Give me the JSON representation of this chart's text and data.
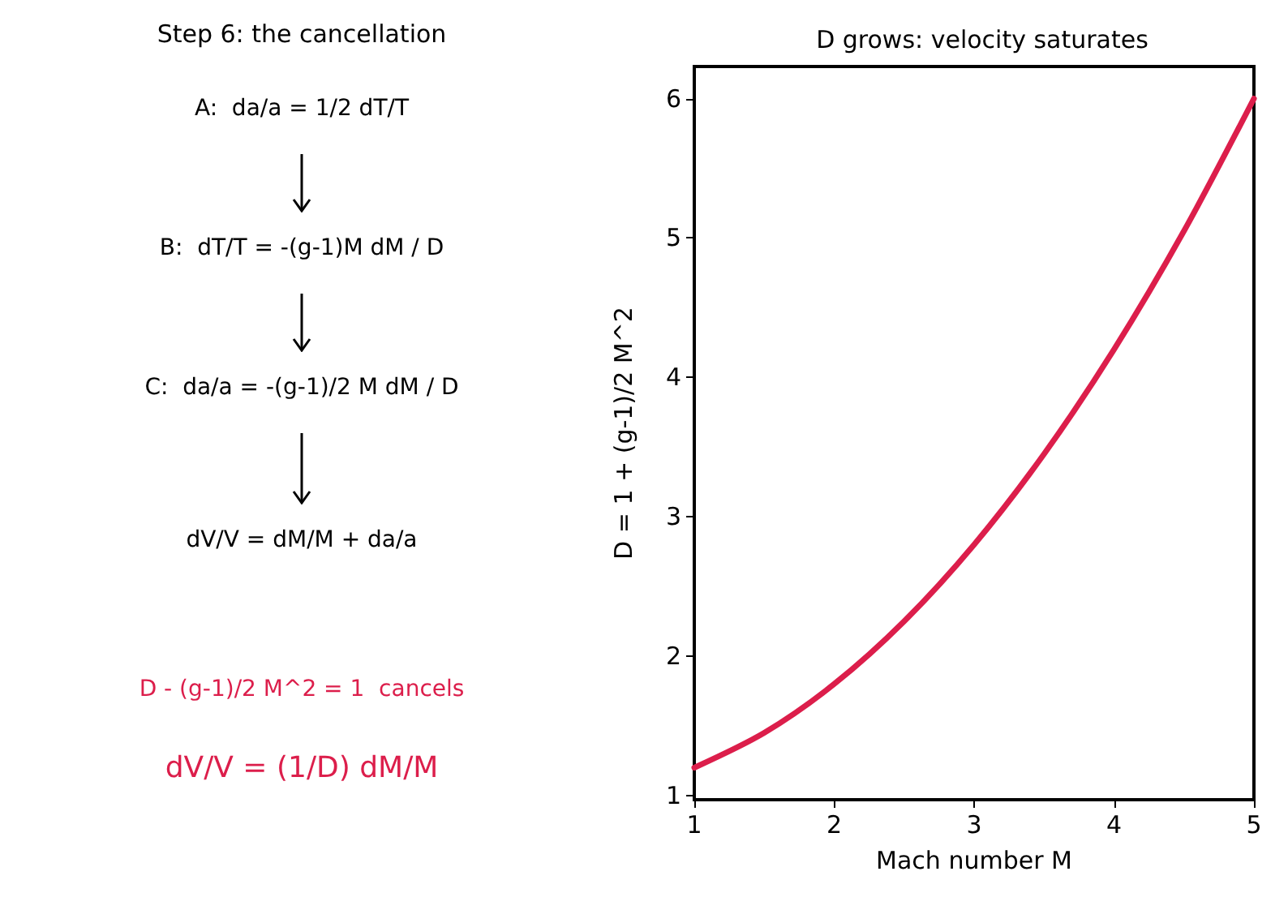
{
  "chart_data": [
    {
      "type": "other",
      "title": "Step 6: the cancellation",
      "color": "#dc1e4b",
      "annotations": [
        "A:  da/a = 1/2 dT/T",
        "B:  dT/T = -(g-1)M dM / D",
        "C:  da/a = -(g-1)/2 M dM / D",
        "dV/V = dM/M + da/a",
        "D - (g-1)/2 M^2 = 1  cancels",
        "dV/V = (1/D) dM/M"
      ]
    },
    {
      "type": "line",
      "title": "D grows: velocity saturates",
      "xlabel": "Mach number M",
      "ylabel": "D = 1 + (g-1)/2 M^2",
      "x": [
        1,
        1.5,
        2,
        2.5,
        3,
        3.5,
        4,
        4.5,
        5
      ],
      "series": [
        {
          "color": "#dc1e4b",
          "values": [
            1.2,
            1.45,
            1.8,
            2.25,
            2.8,
            3.45,
            4.2,
            5.05,
            6
          ]
        }
      ],
      "xlim": [
        1,
        5
      ],
      "xticks": [
        1,
        2,
        3,
        4,
        5
      ],
      "ylim": [
        0.97,
        6.23
      ],
      "yticks": [
        1,
        2,
        3,
        4,
        5,
        6
      ],
      "grid": false,
      "marker": "none",
      "line_style": "solid"
    }
  ]
}
